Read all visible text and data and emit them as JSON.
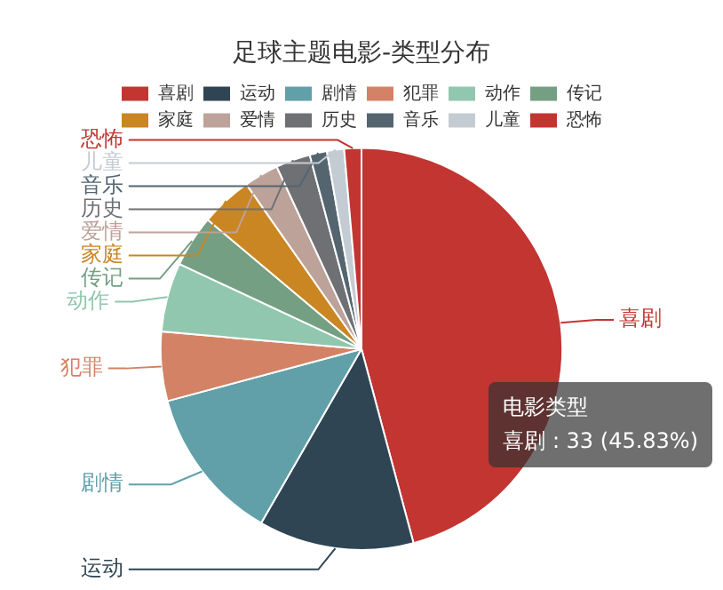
{
  "chart_data": {
    "type": "pie",
    "title": "足球主题电影-类型分布",
    "categories": [
      "喜剧",
      "运动",
      "剧情",
      "犯罪",
      "动作",
      "传记",
      "家庭",
      "爱情",
      "历史",
      "音乐",
      "儿童",
      "恐怖"
    ],
    "values": [
      45.83,
      12.5,
      12.5,
      5.56,
      5.56,
      4.17,
      4.17,
      2.78,
      2.78,
      1.39,
      1.38,
      1.38
    ],
    "colors": [
      "#c23531",
      "#2f4554",
      "#61a0a8",
      "#d48265",
      "#91c7ae",
      "#749f83",
      "#ca8622",
      "#bda29a",
      "#6e7074",
      "#546570",
      "#c4ccd3",
      "#c23531"
    ],
    "legend": "top",
    "annotations": [
      "电影类型",
      "喜剧 : 33 (45.83%)"
    ]
  }
}
